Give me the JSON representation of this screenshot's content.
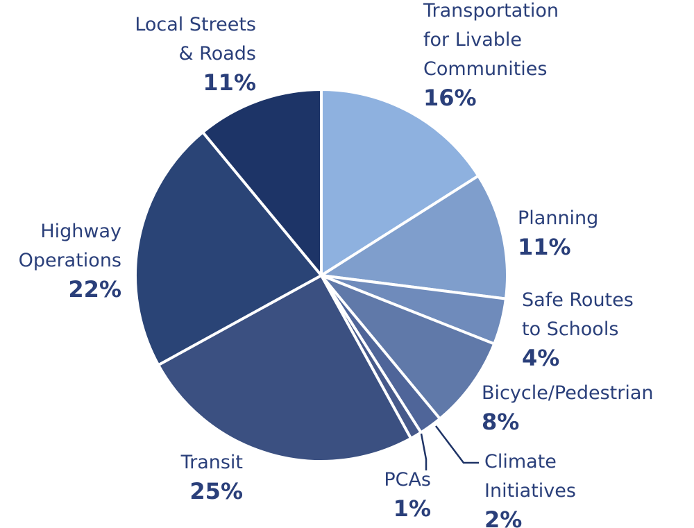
{
  "chart_data": {
    "type": "pie",
    "slices": [
      {
        "name": [
          "Transportation",
          "for Livable",
          "Communities"
        ],
        "percent_label": "16%",
        "value": 16,
        "color": "#8eb1df"
      },
      {
        "name": [
          "Planning"
        ],
        "percent_label": "11%",
        "value": 11,
        "color": "#7f9ecc"
      },
      {
        "name": [
          "Safe Routes",
          "to Schools"
        ],
        "percent_label": "4%",
        "value": 4,
        "color": "#6f8bbb"
      },
      {
        "name": [
          "Bicycle/Pedestrian"
        ],
        "percent_label": "8%",
        "value": 8,
        "color": "#6079a9"
      },
      {
        "name": [
          "Climate",
          "Initiatives"
        ],
        "percent_label": "2%",
        "value": 2,
        "color": "#4f6599"
      },
      {
        "name": [
          "PCAs"
        ],
        "percent_label": "1%",
        "value": 1,
        "color": "#46598a"
      },
      {
        "name": [
          "Transit"
        ],
        "percent_label": "25%",
        "value": 25,
        "color": "#3b5081"
      },
      {
        "name": [
          "Highway",
          "Operations"
        ],
        "percent_label": "22%",
        "value": 22,
        "color": "#2a4476"
      },
      {
        "name": [
          "Local Streets",
          "& Roads"
        ],
        "percent_label": "11%",
        "value": 11,
        "color": "#1d3467"
      }
    ],
    "start": "12 o'clock",
    "direction": "clockwise",
    "legend": "none (direct labels)",
    "label_color": "#2a3f7a"
  }
}
